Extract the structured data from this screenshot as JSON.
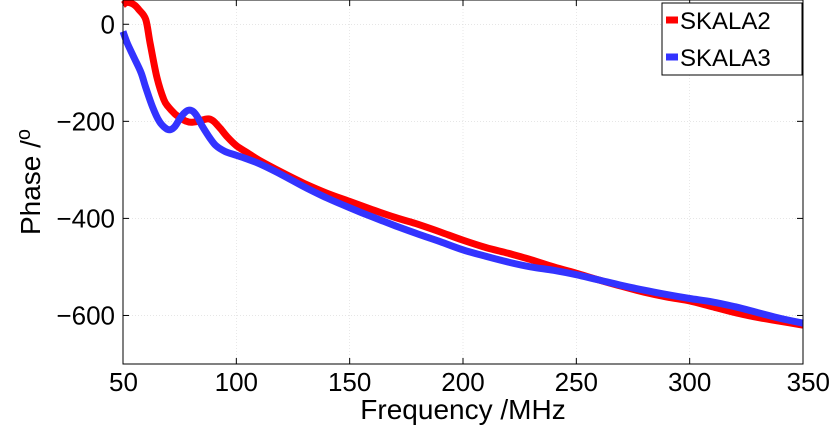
{
  "chart_data": {
    "type": "line",
    "title": "",
    "xlabel": "Frequency /MHz",
    "ylabel": "Phase /",
    "ylabel_superscript": "o",
    "xlim": [
      50,
      350
    ],
    "ylim": [
      -700,
      50
    ],
    "xticks": [
      50,
      100,
      150,
      200,
      250,
      300,
      350
    ],
    "yticks": [
      0,
      -200,
      -400,
      -600
    ],
    "ytick_labels": [
      "0",
      "−200",
      "−400",
      "−600"
    ],
    "grid": true,
    "legend": "top-right",
    "series": [
      {
        "name": "SKALA2",
        "color": "#ff0000",
        "x": [
          50,
          52,
          55,
          57,
          60,
          62,
          65,
          68,
          70,
          73,
          76,
          78,
          80,
          83,
          86,
          88,
          90,
          93,
          96,
          100,
          105,
          110,
          120,
          130,
          140,
          150,
          160,
          170,
          180,
          190,
          200,
          210,
          220,
          230,
          240,
          250,
          260,
          270,
          280,
          290,
          300,
          310,
          320,
          330,
          340,
          350
        ],
        "y": [
          40,
          45,
          40,
          30,
          10,
          -40,
          -110,
          -155,
          -170,
          -185,
          -195,
          -200,
          -202,
          -200,
          -196,
          -195,
          -200,
          -215,
          -232,
          -250,
          -265,
          -280,
          -305,
          -328,
          -348,
          -365,
          -382,
          -398,
          -412,
          -428,
          -445,
          -460,
          -472,
          -485,
          -500,
          -513,
          -527,
          -540,
          -552,
          -562,
          -570,
          -582,
          -594,
          -604,
          -612,
          -620
        ]
      },
      {
        "name": "SKALA3",
        "color": "#3333ff",
        "x": [
          50,
          52,
          55,
          58,
          60,
          63,
          66,
          69,
          71,
          73,
          75,
          77,
          79,
          81,
          83,
          85,
          88,
          91,
          95,
          100,
          105,
          110,
          120,
          130,
          140,
          150,
          160,
          170,
          180,
          190,
          200,
          210,
          220,
          230,
          240,
          250,
          260,
          270,
          280,
          290,
          300,
          310,
          320,
          330,
          340,
          350
        ],
        "y": [
          -15,
          -40,
          -70,
          -100,
          -130,
          -170,
          -200,
          -215,
          -217,
          -210,
          -195,
          -183,
          -177,
          -180,
          -192,
          -210,
          -232,
          -250,
          -262,
          -270,
          -278,
          -287,
          -310,
          -335,
          -358,
          -378,
          -397,
          -415,
          -432,
          -448,
          -465,
          -478,
          -490,
          -500,
          -507,
          -516,
          -527,
          -538,
          -548,
          -557,
          -565,
          -572,
          -582,
          -594,
          -606,
          -616
        ]
      }
    ]
  }
}
